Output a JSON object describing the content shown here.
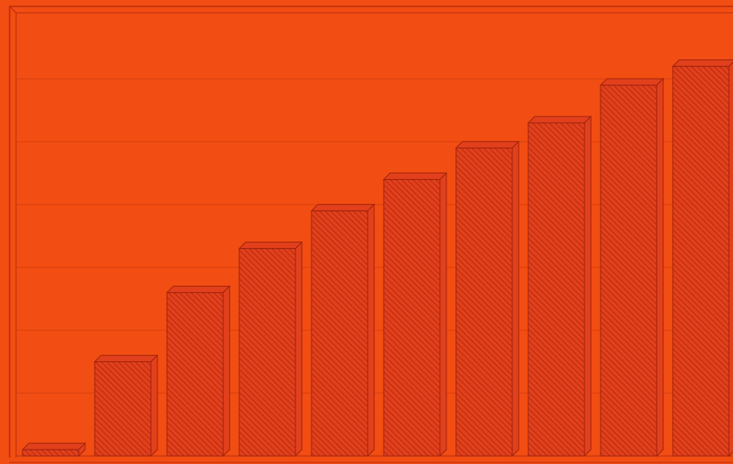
{
  "chart_data": {
    "type": "bar3d",
    "values": [
      0.1,
      1.5,
      2.6,
      3.3,
      3.9,
      4.4,
      4.9,
      5.3,
      5.9,
      6.2
    ],
    "color": "#e2401c",
    "ylim": [
      0,
      7
    ],
    "yticks": [
      1,
      2,
      3,
      4,
      5,
      6
    ],
    "grid": true
  }
}
